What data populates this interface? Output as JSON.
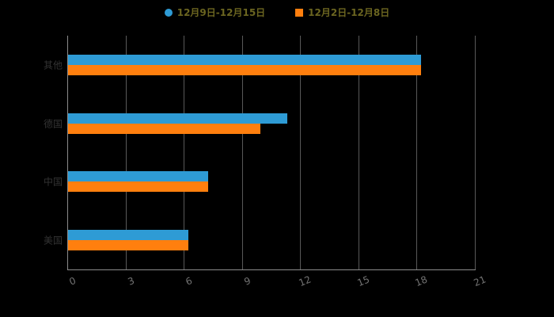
{
  "chart_data": {
    "type": "bar",
    "orientation": "horizontal",
    "title": "",
    "categories": [
      "其他",
      "德国",
      "中国",
      "美国"
    ],
    "series": [
      {
        "name": "12月9日-12月15日",
        "marker": "circle",
        "color": "#2E9BD5",
        "values": [
          18.2,
          11.3,
          7.2,
          6.2
        ]
      },
      {
        "name": "12月2日-12月8日",
        "marker": "square",
        "color": "#FF7F0E",
        "values": [
          18.2,
          9.9,
          7.2,
          6.2
        ]
      }
    ],
    "xlim": [
      0,
      21
    ],
    "x_ticks": [
      "0",
      "3",
      "6",
      "9",
      "12",
      "15",
      "18",
      "21"
    ],
    "legend_position": "top-center",
    "grid": "vertical-gridlines",
    "categories_order": "top-to-bottom"
  },
  "colors": {
    "background": "#000000",
    "axis_line": "#8c8c8c",
    "gridline": "#595959",
    "tick_label": "#737373",
    "category_label": "#333333",
    "legend_text": "#6b6520"
  }
}
